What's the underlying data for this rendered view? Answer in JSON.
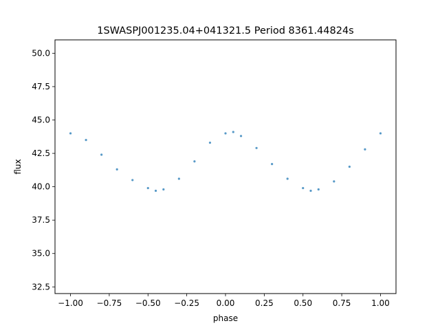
{
  "chart_data": {
    "type": "scatter",
    "title": "1SWASPJ001235.04+041321.5 Period 8361.44824s",
    "xlabel": "phase",
    "ylabel": "flux",
    "xlim": [
      -1.1,
      1.1
    ],
    "ylim": [
      32.0,
      51.0
    ],
    "x_ticks": [
      -1.0,
      -0.75,
      -0.5,
      -0.25,
      0.0,
      0.25,
      0.5,
      0.75,
      1.0
    ],
    "x_tick_labels": [
      "−1.00",
      "−0.75",
      "−0.50",
      "−0.25",
      "0.00",
      "0.25",
      "0.50",
      "0.75",
      "1.00"
    ],
    "y_ticks": [
      32.5,
      35.0,
      37.5,
      40.0,
      42.5,
      45.0,
      47.5,
      50.0
    ],
    "y_tick_labels": [
      "32.5",
      "35.0",
      "37.5",
      "40.0",
      "42.5",
      "45.0",
      "47.5",
      "50.0"
    ],
    "grid": false,
    "marker_color": "#1f77b4",
    "series": [
      {
        "x": [
          -1.0,
          -0.9,
          -0.8,
          -0.7,
          -0.6,
          -0.5,
          -0.45,
          -0.4,
          -0.3,
          -0.2,
          -0.1,
          0.0,
          0.05,
          0.1,
          0.2,
          0.3,
          0.4,
          0.5,
          0.55,
          0.6,
          0.7,
          0.8,
          0.9,
          1.0
        ],
        "y": [
          44.0,
          43.5,
          42.4,
          41.3,
          40.5,
          39.9,
          39.7,
          39.8,
          40.6,
          41.9,
          43.3,
          44.0,
          44.1,
          43.8,
          42.9,
          41.7,
          40.6,
          39.9,
          39.7,
          39.8,
          40.4,
          41.5,
          42.8,
          44.0
        ]
      }
    ]
  }
}
